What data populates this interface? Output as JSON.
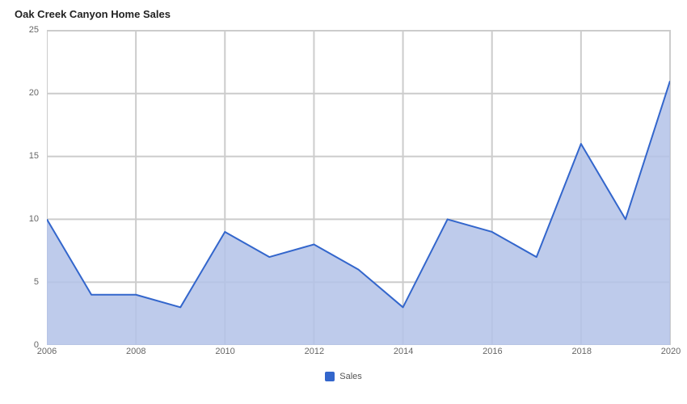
{
  "chart": {
    "type": "area",
    "title": "Oak Creek Canyon Home Sales",
    "title_fontsize": 13,
    "title_fontweight": "bold",
    "title_color": "#222222",
    "x": [
      2006,
      2007,
      2008,
      2009,
      2010,
      2011,
      2012,
      2013,
      2014,
      2015,
      2016,
      2017,
      2018,
      2019,
      2020
    ],
    "y": [
      10,
      4,
      4,
      3,
      9,
      7,
      8,
      6,
      3,
      10,
      9,
      7,
      16,
      10,
      21
    ],
    "xlim": [
      2006,
      2020
    ],
    "ylim": [
      0,
      25
    ],
    "xtick_step": 2,
    "ytick_step": 5,
    "xticks": [
      2006,
      2008,
      2010,
      2012,
      2014,
      2016,
      2018,
      2020
    ],
    "yticks": [
      0,
      5,
      10,
      15,
      20,
      25
    ],
    "line_color": "#3366cc",
    "line_width": 2,
    "fill_color": "#b3c2e8",
    "fill_opacity": 0.85,
    "grid_color": "#cccccc",
    "grid_width": 1,
    "background_color": "#ffffff",
    "axis_label_color": "#666666",
    "axis_label_fontsize": 11,
    "legend": {
      "position": "bottom-center",
      "items": [
        {
          "label": "Sales",
          "color": "#3366cc"
        }
      ],
      "fontsize": 11,
      "text_color": "#555555"
    }
  }
}
